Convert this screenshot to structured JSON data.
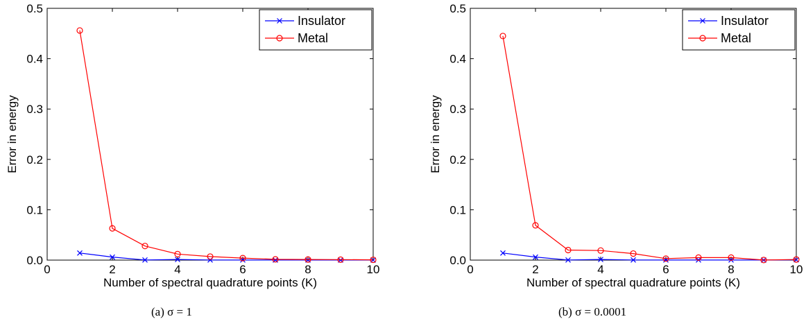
{
  "chart_data": [
    {
      "type": "line",
      "caption": "(a) σ = 1",
      "xlabel": "Number of spectral quadrature points (K)",
      "ylabel": "Error in energy",
      "xlim": [
        0,
        10
      ],
      "ylim": [
        0,
        0.5
      ],
      "xticks": [
        "0",
        "2",
        "4",
        "6",
        "8",
        "10"
      ],
      "yticks": [
        "0.0",
        "0.1",
        "0.2",
        "0.3",
        "0.4",
        "0.5"
      ],
      "legend_position": "top-right",
      "x": [
        1,
        2,
        3,
        4,
        5,
        6,
        7,
        8,
        9,
        10
      ],
      "series": [
        {
          "name": "Insulator",
          "color": "#0000ff",
          "marker": "x",
          "values": [
            0.014,
            0.006,
            0.0003,
            0.0012,
            0.0003,
            0.0002,
            0.0001,
            0.0001,
            0.0001,
            0.0001
          ]
        },
        {
          "name": "Metal",
          "color": "#ff0000",
          "marker": "o",
          "values": [
            0.456,
            0.063,
            0.028,
            0.012,
            0.007,
            0.004,
            0.0015,
            0.0012,
            0.0009,
            0.0006
          ]
        }
      ]
    },
    {
      "type": "line",
      "caption": "(b) σ = 0.0001",
      "xlabel": "Number of spectral quadrature points (K)",
      "ylabel": "Error in energy",
      "xlim": [
        0,
        10
      ],
      "ylim": [
        0,
        0.5
      ],
      "xticks": [
        "0",
        "2",
        "4",
        "6",
        "8",
        "10"
      ],
      "yticks": [
        "0.0",
        "0.1",
        "0.2",
        "0.3",
        "0.4",
        "0.5"
      ],
      "legend_position": "top-right",
      "x": [
        1,
        2,
        3,
        4,
        5,
        6,
        7,
        8,
        9,
        10
      ],
      "series": [
        {
          "name": "Insulator",
          "color": "#0000ff",
          "marker": "x",
          "values": [
            0.014,
            0.006,
            0.0003,
            0.0012,
            0.0003,
            0.0002,
            0.0002,
            0.0002,
            0.0001,
            0.0006
          ]
        },
        {
          "name": "Metal",
          "color": "#ff0000",
          "marker": "o",
          "values": [
            0.445,
            0.069,
            0.02,
            0.019,
            0.013,
            0.003,
            0.005,
            0.005,
            0.0002,
            0.0012
          ]
        }
      ]
    }
  ]
}
